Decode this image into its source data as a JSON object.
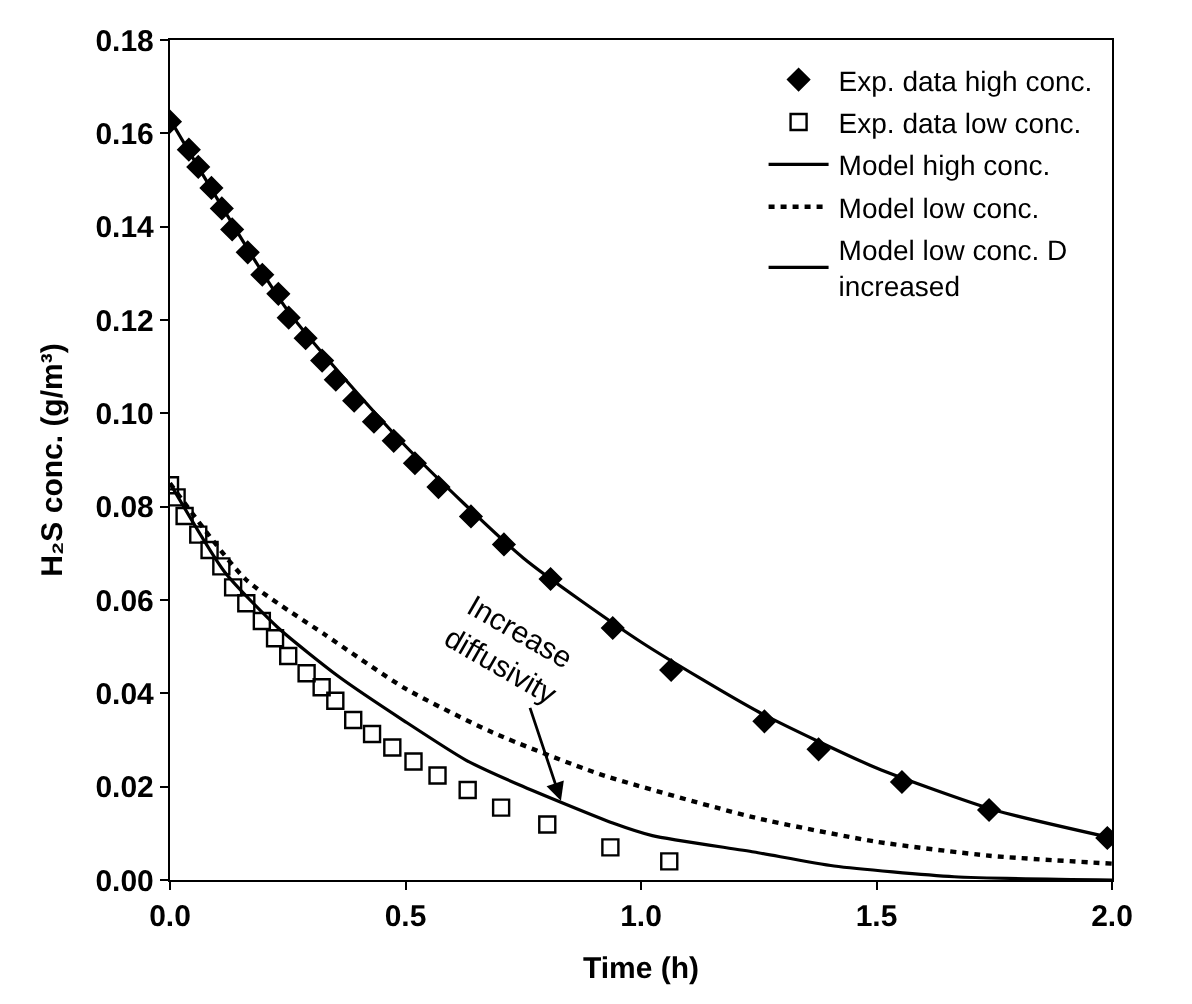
{
  "chart_data": {
    "type": "scatter",
    "xlabel": "Time (h)",
    "ylabel": "H₂S conc. (g/m³)",
    "xlim": [
      0,
      2
    ],
    "ylim": [
      0,
      0.18
    ],
    "xticks": [
      {
        "value": 0,
        "label": "0.0"
      },
      {
        "value": 0.5,
        "label": "0.5"
      },
      {
        "value": 1,
        "label": "1.0"
      },
      {
        "value": 1.5,
        "label": "1.5"
      },
      {
        "value": 2,
        "label": "2.0"
      }
    ],
    "yticks": [
      {
        "value": 0,
        "label": "0.00"
      },
      {
        "value": 0.02,
        "label": "0.02"
      },
      {
        "value": 0.04,
        "label": "0.04"
      },
      {
        "value": 0.06,
        "label": "0.06"
      },
      {
        "value": 0.08,
        "label": "0.08"
      },
      {
        "value": 0.1,
        "label": "0.10"
      },
      {
        "value": 0.12,
        "label": "0.12"
      },
      {
        "value": 0.14,
        "label": "0.14"
      },
      {
        "value": 0.16,
        "label": "0.16"
      },
      {
        "value": 0.18,
        "label": "0.18"
      }
    ],
    "grid": false,
    "legend": "top right",
    "series": [
      {
        "name": "Exp. data high conc.",
        "marker": "diamond",
        "color": "#000000",
        "x": [
          0,
          0.04,
          0.06,
          0.088,
          0.11,
          0.132,
          0.165,
          0.196,
          0.23,
          0.252,
          0.288,
          0.323,
          0.352,
          0.391,
          0.433,
          0.475,
          0.52,
          0.57,
          0.639,
          0.709,
          0.808,
          0.94,
          1.064,
          1.262,
          1.377,
          1.554,
          1.739,
          1.99
        ],
        "values": [
          0.1625,
          0.1565,
          0.1528,
          0.1483,
          0.1439,
          0.1394,
          0.1345,
          0.1297,
          0.1256,
          0.1205,
          0.1161,
          0.1113,
          0.1072,
          0.1027,
          0.0982,
          0.0941,
          0.0893,
          0.0842,
          0.0779,
          0.0719,
          0.0645,
          0.054,
          0.045,
          0.034,
          0.028,
          0.021,
          0.015,
          0.009
        ]
      },
      {
        "name": "Exp. data low conc.",
        "marker": "square",
        "color": "#000000",
        "x": [
          0,
          0.014,
          0.031,
          0.06,
          0.084,
          0.109,
          0.134,
          0.162,
          0.195,
          0.223,
          0.251,
          0.29,
          0.322,
          0.351,
          0.389,
          0.429,
          0.472,
          0.517,
          0.568,
          0.632,
          0.703,
          0.801,
          0.935,
          1.06
        ],
        "values": [
          0.0846,
          0.082,
          0.078,
          0.074,
          0.0707,
          0.0672,
          0.0627,
          0.0593,
          0.0555,
          0.0518,
          0.048,
          0.0443,
          0.0413,
          0.0384,
          0.0343,
          0.0313,
          0.0284,
          0.0254,
          0.0224,
          0.0193,
          0.0155,
          0.0119,
          0.007,
          0.004
        ]
      },
      {
        "name": "Model high conc.",
        "type": "line",
        "line_style": "solid",
        "color": "#000000",
        "x": [
          0,
          0.25,
          0.5,
          0.75,
          1,
          1.25,
          1.5,
          1.75,
          2
        ],
        "values": [
          0.163,
          0.122,
          0.093,
          0.069,
          0.051,
          0.036,
          0.024,
          0.015,
          0.009
        ]
      },
      {
        "name": "Model low conc.",
        "type": "line",
        "line_style": "dotted",
        "color": "#000000",
        "x": [
          0,
          0.16,
          0.33,
          0.5,
          0.685,
          0.912,
          1.24,
          1.5,
          1.74,
          2
        ],
        "values": [
          0.085,
          0.0645,
          0.0525,
          0.041,
          0.0316,
          0.0227,
          0.0134,
          0.0082,
          0.0052,
          0.0035
        ]
      },
      {
        "name": "Model low conc. D increased",
        "type": "line",
        "line_style": "solid",
        "color": "#000000",
        "x": [
          0,
          0.116,
          0.23,
          0.358,
          0.5,
          0.628,
          0.741,
          0.94,
          1.024,
          1.24,
          1.41,
          1.665,
          2
        ],
        "values": [
          0.085,
          0.066,
          0.054,
          0.0436,
          0.0339,
          0.0257,
          0.0204,
          0.0122,
          0.0095,
          0.006,
          0.003,
          0.0007,
          0
        ]
      }
    ],
    "annotations": [
      {
        "text": "Increase\ndiffusivity",
        "x": 0.83,
        "y": 0.017
      }
    ]
  }
}
